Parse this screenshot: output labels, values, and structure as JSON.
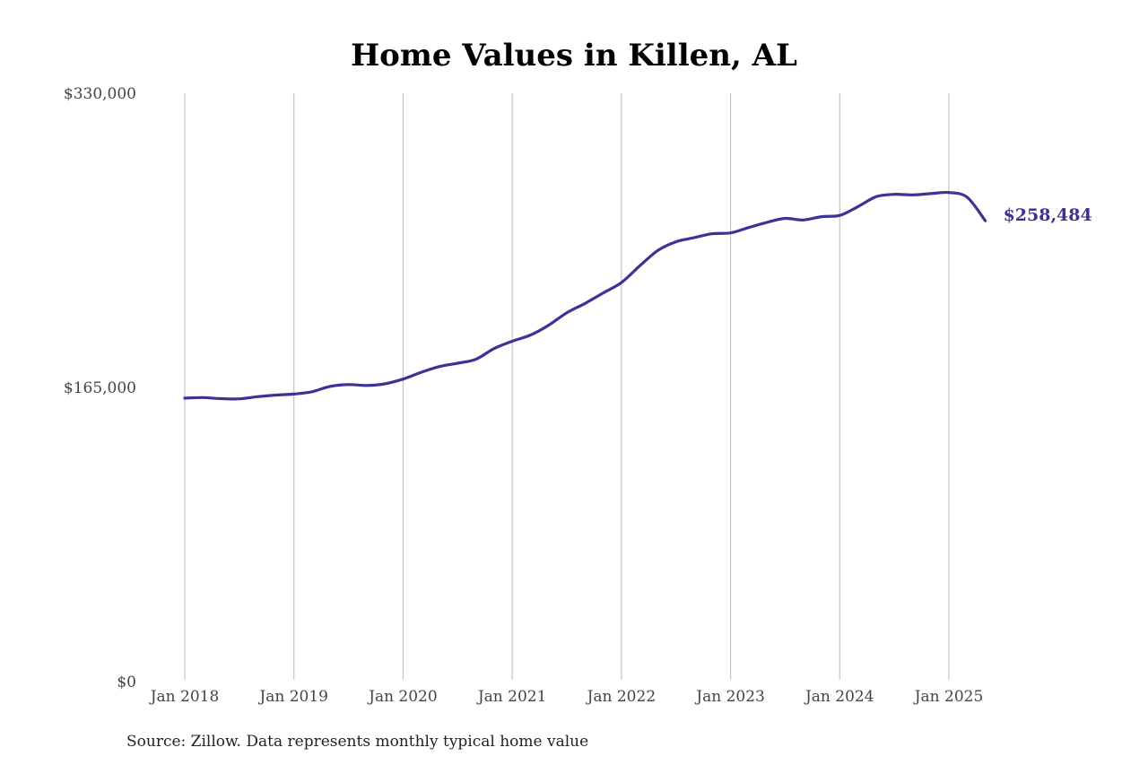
{
  "chart_data": {
    "type": "line",
    "title": "Home Values in Killen, AL",
    "xlabel": "",
    "ylabel": "",
    "ylim": [
      0,
      330000
    ],
    "yticks": [
      {
        "value": 0,
        "label": "$0"
      },
      {
        "value": 165000,
        "label": "$165,000"
      },
      {
        "value": 330000,
        "label": "$330,000"
      }
    ],
    "xticks": [
      {
        "value": "2018-01",
        "label": "Jan 2018"
      },
      {
        "value": "2019-01",
        "label": "Jan 2019"
      },
      {
        "value": "2020-01",
        "label": "Jan 2020"
      },
      {
        "value": "2021-01",
        "label": "Jan 2021"
      },
      {
        "value": "2022-01",
        "label": "Jan 2022"
      },
      {
        "value": "2023-01",
        "label": "Jan 2023"
      },
      {
        "value": "2024-01",
        "label": "Jan 2024"
      },
      {
        "value": "2025-01",
        "label": "Jan 2025"
      }
    ],
    "grid": {
      "vertical": true,
      "horizontal": false
    },
    "line_color": "#3a3494",
    "end_label": "$258,484",
    "series": [
      {
        "x": [
          "2018-01",
          "2018-03",
          "2018-05",
          "2018-07",
          "2018-09",
          "2018-11",
          "2019-01",
          "2019-03",
          "2019-05",
          "2019-07",
          "2019-09",
          "2019-11",
          "2020-01",
          "2020-03",
          "2020-05",
          "2020-07",
          "2020-09",
          "2020-11",
          "2021-01",
          "2021-03",
          "2021-05",
          "2021-07",
          "2021-09",
          "2021-11",
          "2022-01",
          "2022-03",
          "2022-05",
          "2022-07",
          "2022-09",
          "2022-11",
          "2023-01",
          "2023-03",
          "2023-05",
          "2023-07",
          "2023-09",
          "2023-11",
          "2024-01",
          "2024-03",
          "2024-05",
          "2024-07",
          "2024-09",
          "2024-11",
          "2025-01",
          "2025-03",
          "2025-05"
        ],
        "values": [
          159000,
          159300,
          158700,
          158600,
          159800,
          160700,
          161300,
          162600,
          165600,
          166600,
          166100,
          167000,
          169700,
          173500,
          176700,
          178600,
          180800,
          186800,
          190900,
          194400,
          199900,
          206900,
          212100,
          218000,
          223800,
          233100,
          241800,
          246700,
          249000,
          251200,
          251700,
          254700,
          257600,
          259800,
          258900,
          260800,
          261500,
          266400,
          272000,
          273300,
          273000,
          273700,
          274300,
          271700,
          258484
        ]
      }
    ]
  },
  "source_note": "Source: Zillow. Data represents monthly typical home value"
}
